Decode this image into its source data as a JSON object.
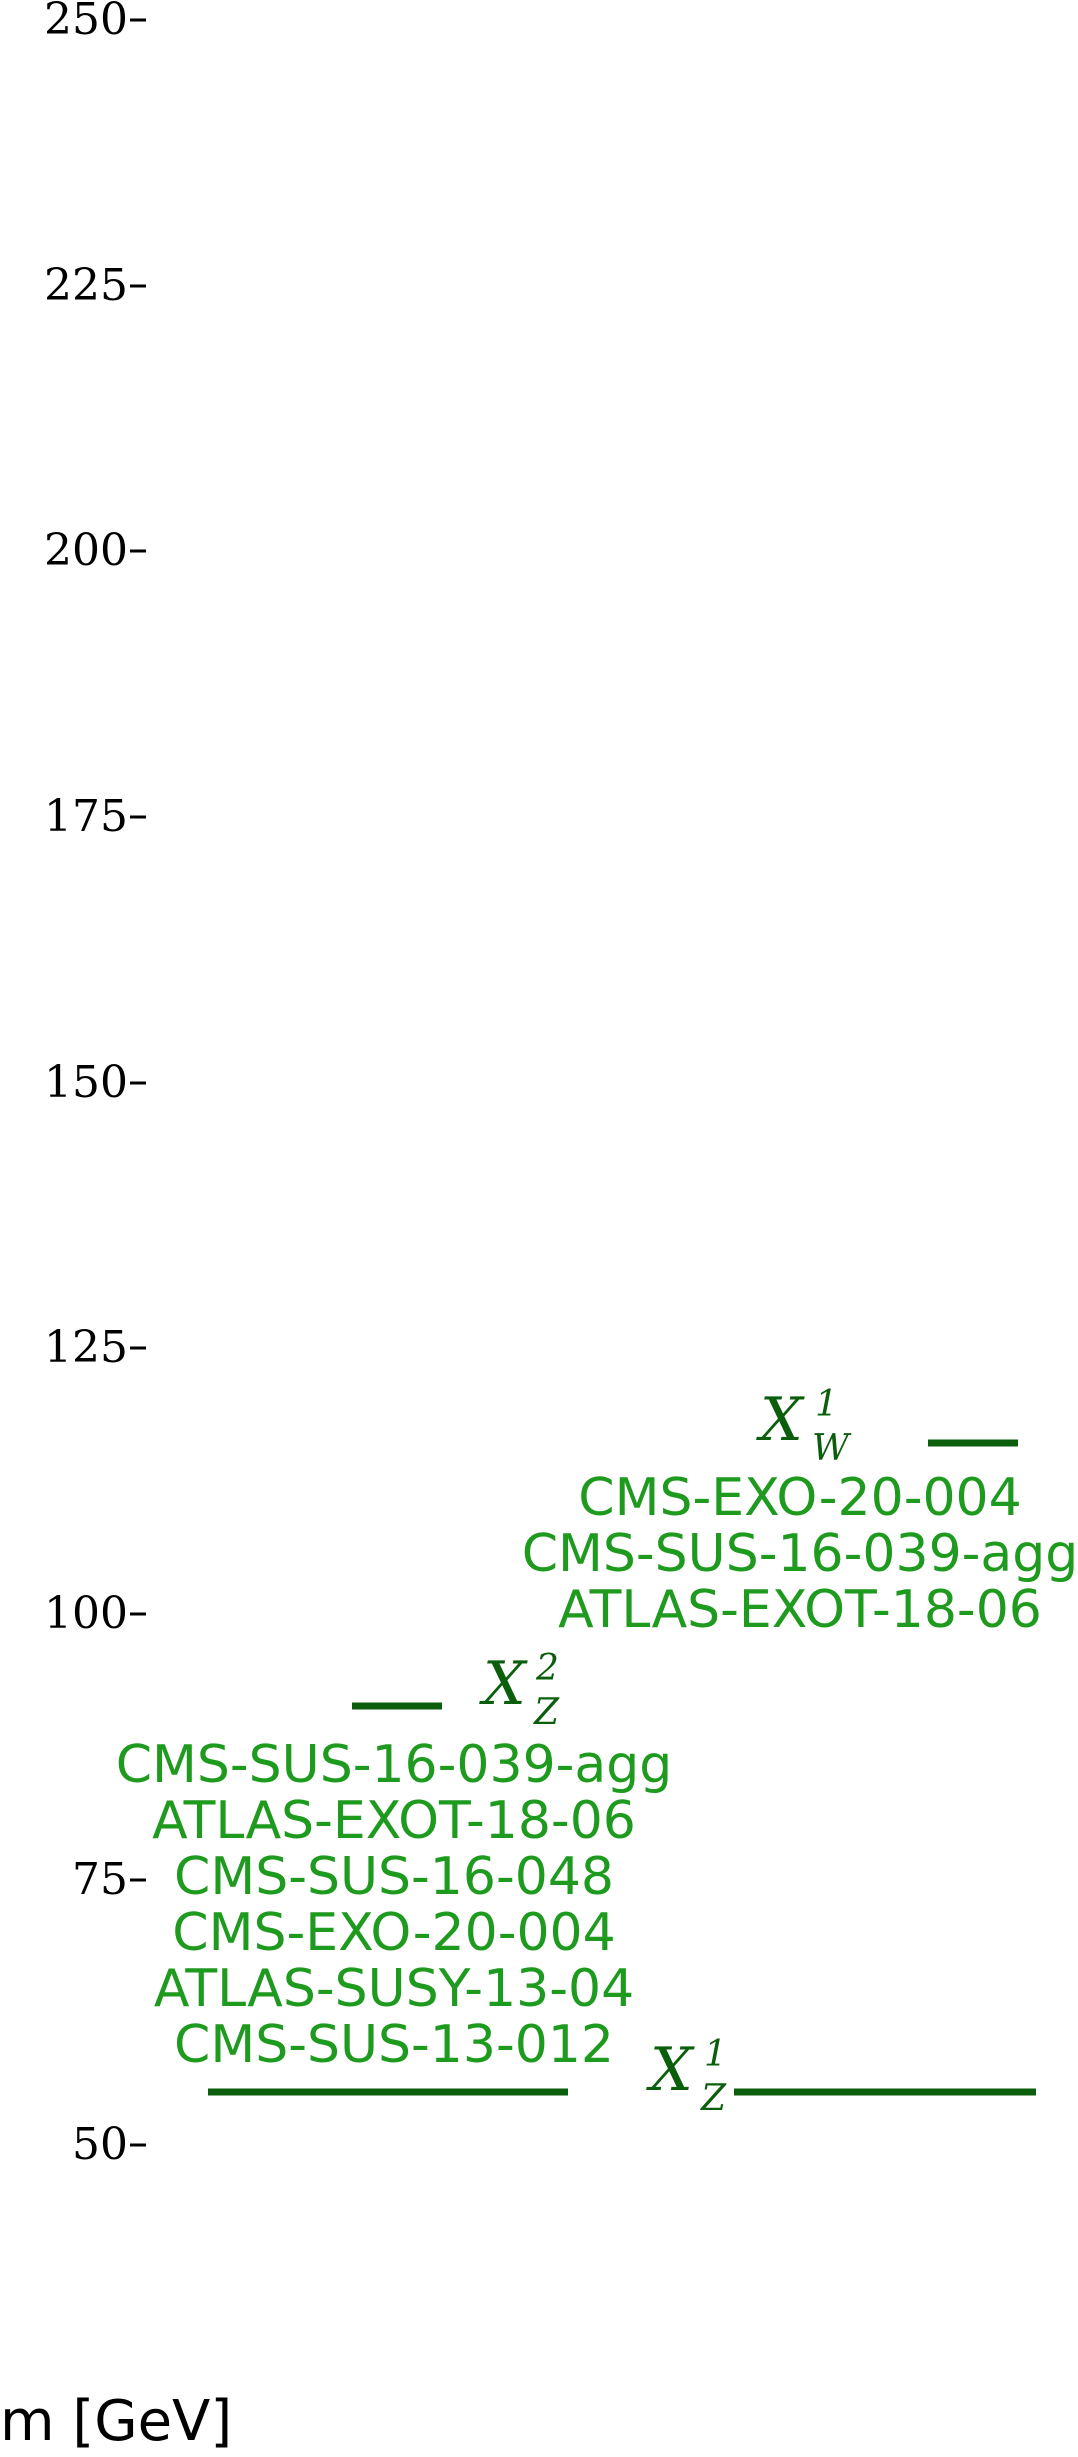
{
  "axis": {
    "title": "m [GeV]",
    "ticks": [
      "250",
      "225",
      "200",
      "175",
      "150",
      "125",
      "100",
      "75",
      "50"
    ],
    "tick_values": [
      250,
      225,
      200,
      175,
      150,
      125,
      100,
      75,
      50
    ],
    "range": [
      50,
      250
    ]
  },
  "colors": {
    "level_line": "#0b5e0b",
    "analysis_text": "#1e9a1e"
  },
  "levels": [
    {
      "particle": "X",
      "subscript": "W",
      "superscript": "1",
      "mass": 116,
      "analyses": [
        "CMS-EXO-20-004",
        "CMS-SUS-16-039-agg",
        "ATLAS-EXOT-18-06"
      ]
    },
    {
      "particle": "X",
      "subscript": "Z",
      "superscript": "2",
      "mass": 91,
      "analyses": [
        "CMS-SUS-16-039-agg",
        "ATLAS-EXOT-18-06",
        "CMS-SUS-16-048",
        "CMS-EXO-20-004",
        "ATLAS-SUSY-13-04",
        "CMS-SUS-13-012"
      ]
    },
    {
      "particle": "X",
      "subscript": "Z",
      "superscript": "1",
      "mass": 55,
      "analyses": []
    }
  ]
}
